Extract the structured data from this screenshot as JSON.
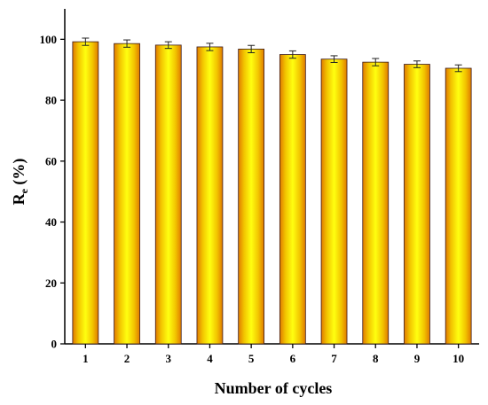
{
  "chart_data": {
    "type": "bar",
    "categories": [
      "1",
      "2",
      "3",
      "4",
      "5",
      "6",
      "7",
      "8",
      "9",
      "10"
    ],
    "values": [
      99.2,
      98.6,
      98.1,
      97.5,
      96.8,
      95.0,
      93.5,
      92.5,
      91.8,
      90.5
    ],
    "errors": [
      1.2,
      1.2,
      1.1,
      1.2,
      1.2,
      1.2,
      1.1,
      1.2,
      1.1,
      1.1
    ],
    "xlabel": "Number of cycles",
    "ylabel_main": "R",
    "ylabel_sub": "e",
    "ylabel_rest": " (%)",
    "ylim": [
      0,
      110
    ],
    "yticks": [
      0,
      20,
      40,
      60,
      80,
      100
    ],
    "grid": false,
    "bar_color": "#f2e000",
    "bar_edge_color": "#e07a00"
  }
}
